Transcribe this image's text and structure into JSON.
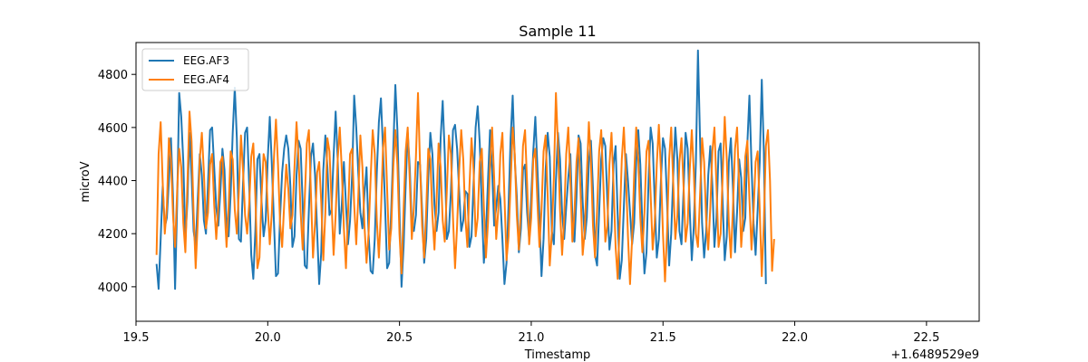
{
  "chart_data": {
    "type": "line",
    "title": "Sample 11",
    "xlabel": "Timestamp",
    "ylabel": "microV",
    "offset_label": "+1.6489529e9",
    "xlim": [
      19.5,
      22.7
    ],
    "ylim": [
      3870,
      4920
    ],
    "x_ticks": [
      19.5,
      20.0,
      20.5,
      21.0,
      21.5,
      22.0,
      22.5
    ],
    "x_tick_labels": [
      "19.5",
      "20.0",
      "20.5",
      "21.0",
      "21.5",
      "22.0",
      "22.5"
    ],
    "y_ticks": [
      4000,
      4200,
      4400,
      4600,
      4800
    ],
    "y_tick_labels": [
      "4000",
      "4200",
      "4400",
      "4600",
      "4800"
    ],
    "legend_position": "upper-left",
    "grid": false,
    "series": [
      {
        "name": "EEG.AF3",
        "color": "#1f77b4",
        "x_start": 19.578,
        "x_step": 0.0078125,
        "values": [
          4086,
          3992,
          4180,
          4380,
          4224,
          4260,
          4400,
          4560,
          4340,
          3992,
          4310,
          4730,
          4640,
          4470,
          4180,
          4320,
          4580,
          4420,
          4210,
          4150,
          4330,
          4500,
          4420,
          4250,
          4200,
          4390,
          4590,
          4600,
          4450,
          4300,
          4230,
          4360,
          4520,
          4440,
          4220,
          4190,
          4350,
          4580,
          4750,
          4560,
          4180,
          4170,
          4390,
          4580,
          4600,
          4380,
          4120,
          4030,
          4210,
          4480,
          4500,
          4320,
          4190,
          4250,
          4480,
          4640,
          4460,
          4250,
          4040,
          4050,
          4260,
          4430,
          4520,
          4570,
          4520,
          4380,
          4150,
          4190,
          4420,
          4550,
          4520,
          4310,
          4080,
          4070,
          4290,
          4490,
          4540,
          4420,
          4210,
          4010,
          4130,
          4440,
          4570,
          4450,
          4270,
          4290,
          4490,
          4660,
          4480,
          4200,
          4310,
          4470,
          4310,
          4160,
          4250,
          4420,
          4720,
          4600,
          4430,
          4280,
          4220,
          4350,
          4450,
          4200,
          4060,
          4050,
          4180,
          4430,
          4620,
          4710,
          4520,
          4310,
          4070,
          4090,
          4290,
          4520,
          4760,
          4590,
          4280,
          4000,
          4150,
          4380,
          4580,
          4450,
          4230,
          4210,
          4270,
          4470,
          4460,
          4290,
          4090,
          4180,
          4410,
          4580,
          4500,
          4310,
          4210,
          4280,
          4560,
          4700,
          4500,
          4180,
          4210,
          4360,
          4590,
          4610,
          4520,
          4360,
          4210,
          4250,
          4360,
          4350,
          4150,
          4190,
          4390,
          4600,
          4680,
          4540,
          4300,
          4090,
          4200,
          4400,
          4590,
          4440,
          4230,
          4300,
          4380,
          4330,
          4180,
          4010,
          4090,
          4310,
          4560,
          4720,
          4480,
          4340,
          4130,
          4220,
          4440,
          4460,
          4280,
          4180,
          4340,
          4510,
          4640,
          4450,
          4260,
          4040,
          4180,
          4440,
          4580,
          4490,
          4210,
          4160,
          4400,
          4580,
          4480,
          4280,
          4180,
          4300,
          4410,
          4500,
          4260,
          4170,
          4340,
          4570,
          4540,
          4320,
          4180,
          4260,
          4470,
          4550,
          4370,
          4120,
          4080,
          4280,
          4480,
          4560,
          4530,
          4320,
          4140,
          4210,
          4460,
          4530,
          4270,
          4030,
          4100,
          4300,
          4500,
          4400,
          4280,
          4160,
          4240,
          4470,
          4590,
          4460,
          4230,
          4050,
          4130,
          4400,
          4600,
          4540,
          4320,
          4110,
          4180,
          4400,
          4560,
          4520,
          4320,
          4080,
          4200,
          4420,
          4600,
          4480,
          4210,
          4160,
          4360,
          4580,
          4520,
          4290,
          4100,
          4230,
          4470,
          4890,
          4560,
          4240,
          4110,
          4210,
          4420,
          4530,
          4380,
          4150,
          4260,
          4510,
          4540,
          4320,
          4100,
          4190,
          4470,
          4560,
          4370,
          4130,
          4280,
          4480,
          4410,
          4210,
          4260,
          4540,
          4720,
          4460,
          4240,
          4120,
          4290,
          4470,
          4780,
          4510,
          4010
        ]
      },
      {
        "name": "EEG.AF4",
        "color": "#ff7f0e",
        "x_start": 19.578,
        "x_step": 0.0078125,
        "values": [
          4120,
          4500,
          4620,
          4390,
          4200,
          4300,
          4560,
          4480,
          4270,
          4150,
          4360,
          4520,
          4450,
          4240,
          4130,
          4390,
          4660,
          4550,
          4280,
          4070,
          4240,
          4480,
          4580,
          4430,
          4220,
          4280,
          4460,
          4500,
          4310,
          4180,
          4300,
          4470,
          4490,
          4300,
          4150,
          4300,
          4510,
          4480,
          4290,
          4200,
          4360,
          4570,
          4440,
          4270,
          4200,
          4310,
          4490,
          4540,
          4340,
          4070,
          4110,
          4340,
          4500,
          4470,
          4300,
          4160,
          4280,
          4480,
          4630,
          4460,
          4240,
          4150,
          4310,
          4460,
          4370,
          4220,
          4270,
          4450,
          4620,
          4480,
          4280,
          4140,
          4330,
          4540,
          4590,
          4350,
          4110,
          4240,
          4430,
          4470,
          4320,
          4100,
          4280,
          4560,
          4510,
          4320,
          4120,
          4270,
          4480,
          4600,
          4440,
          4220,
          4070,
          4270,
          4500,
          4520,
          4310,
          4160,
          4340,
          4570,
          4450,
          4230,
          4090,
          4200,
          4410,
          4590,
          4500,
          4250,
          4110,
          4280,
          4520,
          4600,
          4370,
          4140,
          4220,
          4450,
          4590,
          4460,
          4200,
          4050,
          4290,
          4510,
          4600,
          4400,
          4180,
          4300,
          4490,
          4730,
          4460,
          4230,
          4110,
          4290,
          4520,
          4480,
          4270,
          4140,
          4320,
          4540,
          4450,
          4250,
          4170,
          4360,
          4570,
          4500,
          4260,
          4070,
          4230,
          4440,
          4590,
          4480,
          4260,
          4150,
          4380,
          4560,
          4440,
          4190,
          4260,
          4470,
          4520,
          4300,
          4110,
          4240,
          4460,
          4600,
          4410,
          4180,
          4290,
          4500,
          4580,
          4340,
          4100,
          4190,
          4390,
          4600,
          4500,
          4270,
          4140,
          4300,
          4530,
          4590,
          4390,
          4160,
          4260,
          4480,
          4520,
          4320,
          4150,
          4290,
          4510,
          4570,
          4340,
          4080,
          4200,
          4410,
          4730,
          4530,
          4290,
          4120,
          4260,
          4500,
          4600,
          4410,
          4170,
          4280,
          4470,
          4560,
          4350,
          4120,
          4210,
          4420,
          4620,
          4470,
          4230,
          4110,
          4290,
          4510,
          4590,
          4400,
          4170,
          4230,
          4460,
          4580,
          4380,
          4150,
          4030,
          4240,
          4480,
          4600,
          4420,
          4190,
          4010,
          4180,
          4420,
          4600,
          4480,
          4260,
          4130,
          4280,
          4510,
          4550,
          4350,
          4140,
          4240,
          4460,
          4610,
          4440,
          4200,
          4020,
          4210,
          4480,
          4600,
          4390,
          4180,
          4270,
          4470,
          4560,
          4380,
          4170,
          4240,
          4440,
          4590,
          4430,
          4200,
          4150,
          4340,
          4560,
          4470,
          4250,
          4140,
          4300,
          4510,
          4600,
          4380,
          4150,
          4200,
          4420,
          4640,
          4480,
          4240,
          4110,
          4300,
          4520,
          4600,
          4380,
          4150,
          4270,
          4490,
          4550,
          4330,
          4140,
          4280,
          4470,
          4510,
          4290,
          4040,
          4240,
          4530,
          4590,
          4400,
          4060,
          4180
        ]
      }
    ]
  }
}
